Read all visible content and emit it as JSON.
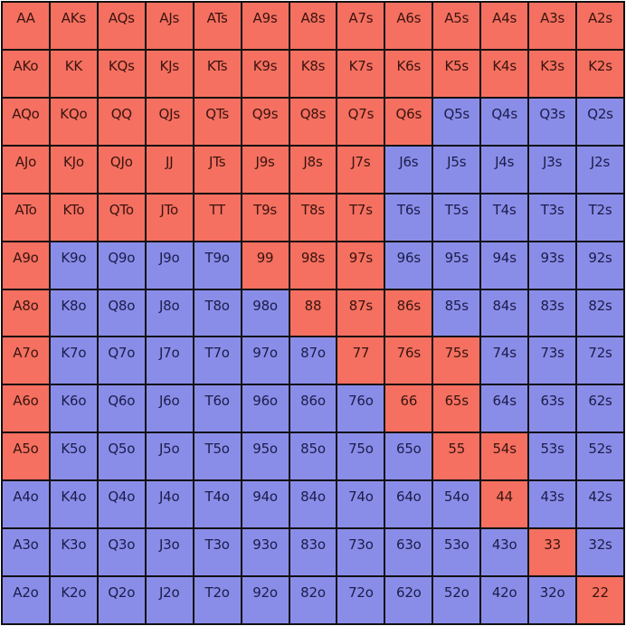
{
  "colors": {
    "raise": "#F57060",
    "fold": "#8A8DE8",
    "border": "#111111"
  },
  "legend": {
    "raise": "red",
    "fold": "blue"
  },
  "ranks": [
    "A",
    "K",
    "Q",
    "J",
    "T",
    "9",
    "8",
    "7",
    "6",
    "5",
    "4",
    "3",
    "2"
  ],
  "grid": [
    [
      {
        "label": "AA",
        "action": "raise"
      },
      {
        "label": "AKs",
        "action": "raise"
      },
      {
        "label": "AQs",
        "action": "raise"
      },
      {
        "label": "AJs",
        "action": "raise"
      },
      {
        "label": "ATs",
        "action": "raise"
      },
      {
        "label": "A9s",
        "action": "raise"
      },
      {
        "label": "A8s",
        "action": "raise"
      },
      {
        "label": "A7s",
        "action": "raise"
      },
      {
        "label": "A6s",
        "action": "raise"
      },
      {
        "label": "A5s",
        "action": "raise"
      },
      {
        "label": "A4s",
        "action": "raise"
      },
      {
        "label": "A3s",
        "action": "raise"
      },
      {
        "label": "A2s",
        "action": "raise"
      }
    ],
    [
      {
        "label": "AKo",
        "action": "raise"
      },
      {
        "label": "KK",
        "action": "raise"
      },
      {
        "label": "KQs",
        "action": "raise"
      },
      {
        "label": "KJs",
        "action": "raise"
      },
      {
        "label": "KTs",
        "action": "raise"
      },
      {
        "label": "K9s",
        "action": "raise"
      },
      {
        "label": "K8s",
        "action": "raise"
      },
      {
        "label": "K7s",
        "action": "raise"
      },
      {
        "label": "K6s",
        "action": "raise"
      },
      {
        "label": "K5s",
        "action": "raise"
      },
      {
        "label": "K4s",
        "action": "raise"
      },
      {
        "label": "K3s",
        "action": "raise"
      },
      {
        "label": "K2s",
        "action": "raise"
      }
    ],
    [
      {
        "label": "AQo",
        "action": "raise"
      },
      {
        "label": "KQo",
        "action": "raise"
      },
      {
        "label": "QQ",
        "action": "raise"
      },
      {
        "label": "QJs",
        "action": "raise"
      },
      {
        "label": "QTs",
        "action": "raise"
      },
      {
        "label": "Q9s",
        "action": "raise"
      },
      {
        "label": "Q8s",
        "action": "raise"
      },
      {
        "label": "Q7s",
        "action": "raise"
      },
      {
        "label": "Q6s",
        "action": "raise"
      },
      {
        "label": "Q5s",
        "action": "fold"
      },
      {
        "label": "Q4s",
        "action": "fold"
      },
      {
        "label": "Q3s",
        "action": "fold"
      },
      {
        "label": "Q2s",
        "action": "fold"
      }
    ],
    [
      {
        "label": "AJo",
        "action": "raise"
      },
      {
        "label": "KJo",
        "action": "raise"
      },
      {
        "label": "QJo",
        "action": "raise"
      },
      {
        "label": "JJ",
        "action": "raise"
      },
      {
        "label": "JTs",
        "action": "raise"
      },
      {
        "label": "J9s",
        "action": "raise"
      },
      {
        "label": "J8s",
        "action": "raise"
      },
      {
        "label": "J7s",
        "action": "raise"
      },
      {
        "label": "J6s",
        "action": "fold"
      },
      {
        "label": "J5s",
        "action": "fold"
      },
      {
        "label": "J4s",
        "action": "fold"
      },
      {
        "label": "J3s",
        "action": "fold"
      },
      {
        "label": "J2s",
        "action": "fold"
      }
    ],
    [
      {
        "label": "ATo",
        "action": "raise"
      },
      {
        "label": "KTo",
        "action": "raise"
      },
      {
        "label": "QTo",
        "action": "raise"
      },
      {
        "label": "JTo",
        "action": "raise"
      },
      {
        "label": "TT",
        "action": "raise"
      },
      {
        "label": "T9s",
        "action": "raise"
      },
      {
        "label": "T8s",
        "action": "raise"
      },
      {
        "label": "T7s",
        "action": "raise"
      },
      {
        "label": "T6s",
        "action": "fold"
      },
      {
        "label": "T5s",
        "action": "fold"
      },
      {
        "label": "T4s",
        "action": "fold"
      },
      {
        "label": "T3s",
        "action": "fold"
      },
      {
        "label": "T2s",
        "action": "fold"
      }
    ],
    [
      {
        "label": "A9o",
        "action": "raise"
      },
      {
        "label": "K9o",
        "action": "fold"
      },
      {
        "label": "Q9o",
        "action": "fold"
      },
      {
        "label": "J9o",
        "action": "fold"
      },
      {
        "label": "T9o",
        "action": "fold"
      },
      {
        "label": "99",
        "action": "raise"
      },
      {
        "label": "98s",
        "action": "raise"
      },
      {
        "label": "97s",
        "action": "raise"
      },
      {
        "label": "96s",
        "action": "fold"
      },
      {
        "label": "95s",
        "action": "fold"
      },
      {
        "label": "94s",
        "action": "fold"
      },
      {
        "label": "93s",
        "action": "fold"
      },
      {
        "label": "92s",
        "action": "fold"
      }
    ],
    [
      {
        "label": "A8o",
        "action": "raise"
      },
      {
        "label": "K8o",
        "action": "fold"
      },
      {
        "label": "Q8o",
        "action": "fold"
      },
      {
        "label": "J8o",
        "action": "fold"
      },
      {
        "label": "T8o",
        "action": "fold"
      },
      {
        "label": "98o",
        "action": "fold"
      },
      {
        "label": "88",
        "action": "raise"
      },
      {
        "label": "87s",
        "action": "raise"
      },
      {
        "label": "86s",
        "action": "raise"
      },
      {
        "label": "85s",
        "action": "fold"
      },
      {
        "label": "84s",
        "action": "fold"
      },
      {
        "label": "83s",
        "action": "fold"
      },
      {
        "label": "82s",
        "action": "fold"
      }
    ],
    [
      {
        "label": "A7o",
        "action": "raise"
      },
      {
        "label": "K7o",
        "action": "fold"
      },
      {
        "label": "Q7o",
        "action": "fold"
      },
      {
        "label": "J7o",
        "action": "fold"
      },
      {
        "label": "T7o",
        "action": "fold"
      },
      {
        "label": "97o",
        "action": "fold"
      },
      {
        "label": "87o",
        "action": "fold"
      },
      {
        "label": "77",
        "action": "raise"
      },
      {
        "label": "76s",
        "action": "raise"
      },
      {
        "label": "75s",
        "action": "raise"
      },
      {
        "label": "74s",
        "action": "fold"
      },
      {
        "label": "73s",
        "action": "fold"
      },
      {
        "label": "72s",
        "action": "fold"
      }
    ],
    [
      {
        "label": "A6o",
        "action": "raise"
      },
      {
        "label": "K6o",
        "action": "fold"
      },
      {
        "label": "Q6o",
        "action": "fold"
      },
      {
        "label": "J6o",
        "action": "fold"
      },
      {
        "label": "T6o",
        "action": "fold"
      },
      {
        "label": "96o",
        "action": "fold"
      },
      {
        "label": "86o",
        "action": "fold"
      },
      {
        "label": "76o",
        "action": "fold"
      },
      {
        "label": "66",
        "action": "raise"
      },
      {
        "label": "65s",
        "action": "raise"
      },
      {
        "label": "64s",
        "action": "fold"
      },
      {
        "label": "63s",
        "action": "fold"
      },
      {
        "label": "62s",
        "action": "fold"
      }
    ],
    [
      {
        "label": "A5o",
        "action": "raise"
      },
      {
        "label": "K5o",
        "action": "fold"
      },
      {
        "label": "Q5o",
        "action": "fold"
      },
      {
        "label": "J5o",
        "action": "fold"
      },
      {
        "label": "T5o",
        "action": "fold"
      },
      {
        "label": "95o",
        "action": "fold"
      },
      {
        "label": "85o",
        "action": "fold"
      },
      {
        "label": "75o",
        "action": "fold"
      },
      {
        "label": "65o",
        "action": "fold"
      },
      {
        "label": "55",
        "action": "raise"
      },
      {
        "label": "54s",
        "action": "raise"
      },
      {
        "label": "53s",
        "action": "fold"
      },
      {
        "label": "52s",
        "action": "fold"
      }
    ],
    [
      {
        "label": "A4o",
        "action": "fold"
      },
      {
        "label": "K4o",
        "action": "fold"
      },
      {
        "label": "Q4o",
        "action": "fold"
      },
      {
        "label": "J4o",
        "action": "fold"
      },
      {
        "label": "T4o",
        "action": "fold"
      },
      {
        "label": "94o",
        "action": "fold"
      },
      {
        "label": "84o",
        "action": "fold"
      },
      {
        "label": "74o",
        "action": "fold"
      },
      {
        "label": "64o",
        "action": "fold"
      },
      {
        "label": "54o",
        "action": "fold"
      },
      {
        "label": "44",
        "action": "raise"
      },
      {
        "label": "43s",
        "action": "fold"
      },
      {
        "label": "42s",
        "action": "fold"
      }
    ],
    [
      {
        "label": "A3o",
        "action": "fold"
      },
      {
        "label": "K3o",
        "action": "fold"
      },
      {
        "label": "Q3o",
        "action": "fold"
      },
      {
        "label": "J3o",
        "action": "fold"
      },
      {
        "label": "T3o",
        "action": "fold"
      },
      {
        "label": "93o",
        "action": "fold"
      },
      {
        "label": "83o",
        "action": "fold"
      },
      {
        "label": "73o",
        "action": "fold"
      },
      {
        "label": "63o",
        "action": "fold"
      },
      {
        "label": "53o",
        "action": "fold"
      },
      {
        "label": "43o",
        "action": "fold"
      },
      {
        "label": "33",
        "action": "raise"
      },
      {
        "label": "32s",
        "action": "fold"
      }
    ],
    [
      {
        "label": "A2o",
        "action": "fold"
      },
      {
        "label": "K2o",
        "action": "fold"
      },
      {
        "label": "Q2o",
        "action": "fold"
      },
      {
        "label": "J2o",
        "action": "fold"
      },
      {
        "label": "T2o",
        "action": "fold"
      },
      {
        "label": "92o",
        "action": "fold"
      },
      {
        "label": "82o",
        "action": "fold"
      },
      {
        "label": "72o",
        "action": "fold"
      },
      {
        "label": "62o",
        "action": "fold"
      },
      {
        "label": "52o",
        "action": "fold"
      },
      {
        "label": "42o",
        "action": "fold"
      },
      {
        "label": "32o",
        "action": "fold"
      },
      {
        "label": "22",
        "action": "raise"
      }
    ]
  ]
}
